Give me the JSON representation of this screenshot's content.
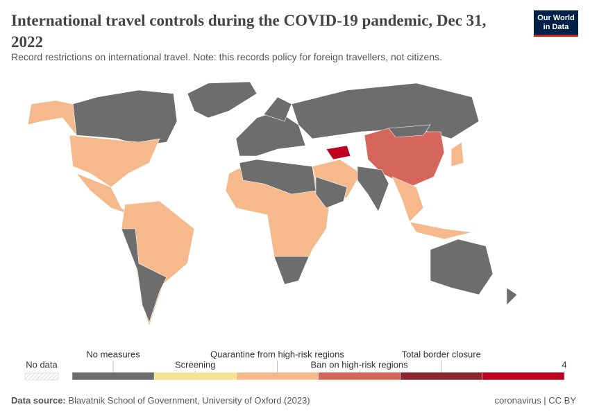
{
  "header": {
    "title": "International travel controls during the COVID-19 pandemic, Dec 31, 2022",
    "subtitle": "Record restrictions on international travel. Note: this records policy for foreign travellers, not citizens.",
    "logo": [
      "Our World",
      "in Data"
    ]
  },
  "legend": {
    "no_data": "No data",
    "bins": [
      {
        "label": "No measures",
        "color": "#6d6d6d"
      },
      {
        "label": "Screening",
        "color": "#f6e38d"
      },
      {
        "label": "Quarantine from high-risk regions",
        "color": "#f5b98b"
      },
      {
        "label": "Ban on high-risk regions",
        "color": "#d5665c"
      },
      {
        "label": "Total border closure",
        "color": "#8e2631"
      },
      {
        "label": null,
        "color": "#be0021"
      }
    ],
    "end_tick": 4
  },
  "footer": {
    "source_label": "Data source:",
    "source": "Blavatnik School of Government, University of Oxford (2023)",
    "right": "coronavirus | CC BY"
  }
}
